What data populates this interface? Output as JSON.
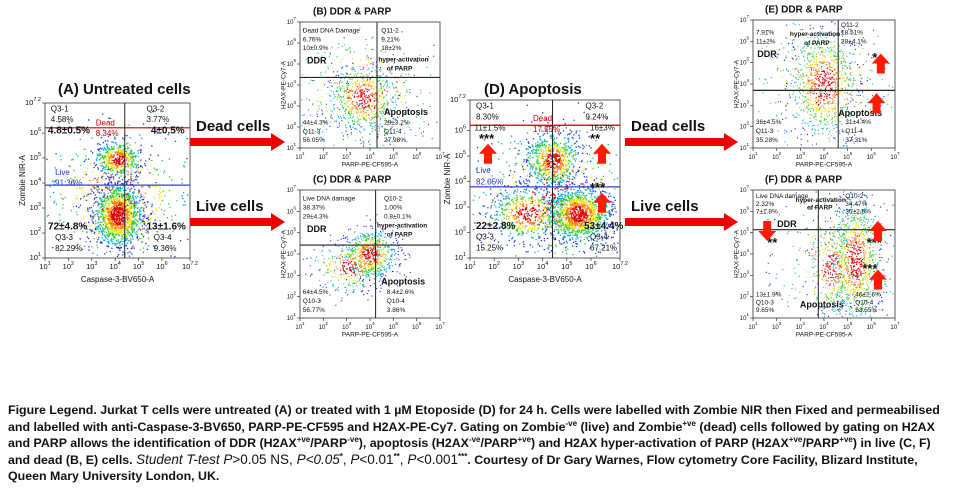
{
  "tick_base": "10",
  "small_ticks": [
    "1",
    "2",
    "3",
    "4",
    "5",
    "6",
    "7"
  ],
  "large_ticks": [
    "1",
    "2",
    "3",
    "4",
    "5",
    "6",
    "7.2"
  ],
  "panels": [
    {
      "title": "(A) Untreated cells",
      "x_label": "Caspase-3-BV650-A",
      "y_label": "Zombie NIR-A",
      "labels": [
        "Q3-1",
        "4.58%",
        "4.8±0.5%",
        "Q3-2",
        "3.77%",
        "4±0.5%",
        "Dead",
        "8.34%",
        "Live",
        "91.36%",
        "72±4.8%",
        "Q3-3",
        "82.29%",
        "13±1.6%",
        "Q3-4",
        "9.36%"
      ]
    },
    {
      "title": "(B) DDR & PARP",
      "x_label": "PARP-PE-CF595-A",
      "y_label": "H2AX-PE-Cy7-A",
      "labels": [
        "Dead DNA Damage",
        "6.76%",
        "10±0.9%",
        "Q11-2",
        "9.21%",
        "18±2%",
        "DDR",
        "hyper-activation",
        "of PARP",
        "44±4.3%",
        "Q11-3",
        "56.05%",
        "Apoptosis",
        "29±3.2%",
        "Q11-4",
        "27.98%"
      ]
    },
    {
      "title": "(C) DDR & PARP",
      "x_label": "PARP-PE-CF595-A",
      "y_label": "H2AX-PE-Cy7-A",
      "labels": [
        "Live DNA damage",
        "38.37%",
        "29±4.3%",
        "Q10-2",
        "1.00%",
        "0.8±0.1%",
        "DDR",
        "hyper-activation",
        "of PARP",
        "Apoptosis",
        "8.4±2.6%",
        "64±4.5%",
        "Q10-3",
        "56.77%",
        "Q10-4",
        "3.86%"
      ]
    },
    {
      "title": "(D) Apoptosis",
      "x_label": "Caspase-3-BV650-A",
      "y_label": "Zombie NIR-A",
      "labels": [
        "Q3-1",
        "8.30%",
        "11±1.5%",
        "Q3-2",
        "9.24%",
        "16±3%",
        "Dead",
        "17.55%",
        "Live",
        "82.05%",
        "***",
        "**",
        "***",
        "22±2.8%",
        "Q3-3",
        "15.25%",
        "53±4.4%",
        "Q3-4",
        "67.21%"
      ]
    },
    {
      "title": "(E) DDR & PARP",
      "x_label": "PARP-PE-CF595-A",
      "y_label": "H2AX-PE-Cy7-A",
      "labels": [
        "7.91%",
        "11±2%",
        "Q11-2",
        "18.51%",
        "28±4.1%",
        "DDR",
        "hyper-activation",
        "of PARP",
        "*",
        "Apoptosis",
        "31±4.4%",
        "36±4.5%",
        "Q11-3",
        "35.28%",
        "Q11-4",
        "37.31%"
      ]
    },
    {
      "title": "(F) DDR & PARP",
      "x_label": "PARP-PE-CF595-A",
      "y_label": "H2AX-PE-Cy7-A",
      "labels": [
        "Live DNA damage",
        "2.32%",
        "7±1.8%",
        "Q10-2",
        "34.47%",
        "35±2.5%",
        "DDR",
        "hyper-activation",
        "of PARP",
        "**",
        "***",
        "***",
        "Apoptosis",
        "46±2.6%",
        "13±1.9%",
        "Q10-3",
        "9.65%",
        "Q10-4",
        "53.55%"
      ]
    }
  ],
  "arrow_labels": [
    "Dead cells",
    "Live cells",
    "Dead cells",
    "Live cells"
  ],
  "legend": {
    "runs": [
      {
        "text": "Figure Legend. Jurkat T cells were untreated (A) or treated with 1 µM Etoposide (D) for 24 h. Cells were labelled with Zombie NIR then Fixed and permeabilised and labelled with anti-Caspase-3-BV650, PARP-PE-CF595 and H2AX-PE-Cy7. Gating on Zombie",
        "style": "plain"
      },
      {
        "text": "-ve",
        "style": "sup"
      },
      {
        "text": " (live) and Zombie",
        "style": "plain"
      },
      {
        "text": "+ve",
        "style": "sup"
      },
      {
        "text": " (dead) cells followed by gating on H2AX and PARP allows the identification of DDR (H2AX",
        "style": "plain"
      },
      {
        "text": "+ve",
        "style": "sup"
      },
      {
        "text": "/PARP",
        "style": "plain"
      },
      {
        "text": "-ve",
        "style": "sup"
      },
      {
        "text": "), apoptosis (H2AX",
        "style": "plain"
      },
      {
        "text": "-ve",
        "style": "sup"
      },
      {
        "text": "/PARP",
        "style": "plain"
      },
      {
        "text": "+ve",
        "style": "sup"
      },
      {
        "text": ") and H2AX hyper-activation of PARP (H2AX",
        "style": "plain"
      },
      {
        "text": "+ve",
        "style": "sup"
      },
      {
        "text": "/PARP",
        "style": "plain"
      },
      {
        "text": "+ve",
        "style": "sup"
      },
      {
        "text": ") in live (C, F) and dead (B, E) cells. ",
        "style": "plain"
      },
      {
        "text": "Student T-test P",
        "style": "italic"
      },
      {
        "text": ">0.05 NS, ",
        "style": "big"
      },
      {
        "text": "P<0.05",
        "style": "italic"
      },
      {
        "text": "*",
        "style": "sup"
      },
      {
        "text": ", ",
        "style": "big"
      },
      {
        "text": "P",
        "style": "italic"
      },
      {
        "text": "<0.01",
        "style": "big"
      },
      {
        "text": "**",
        "style": "sup"
      },
      {
        "text": ", ",
        "style": "big"
      },
      {
        "text": "P",
        "style": "italic"
      },
      {
        "text": "<0.001",
        "style": "big"
      },
      {
        "text": "***",
        "style": "sup"
      },
      {
        "text": ". Courtesy of Dr Gary Warnes, Flow cytometry Core Facility, Blizard Institute, Queen Mary University London, UK.",
        "style": "plain"
      }
    ]
  }
}
